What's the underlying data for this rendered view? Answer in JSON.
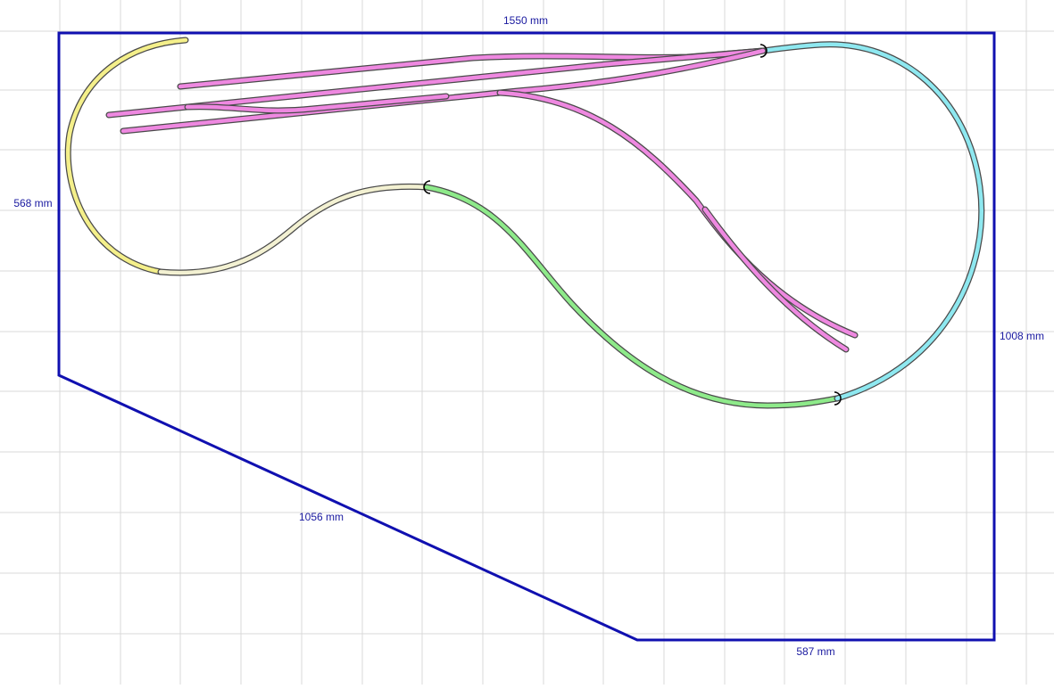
{
  "dimensions": [
    "1550 mm",
    "568 mm",
    "1008 mm",
    "1056 mm",
    "587 mm"
  ]
}
